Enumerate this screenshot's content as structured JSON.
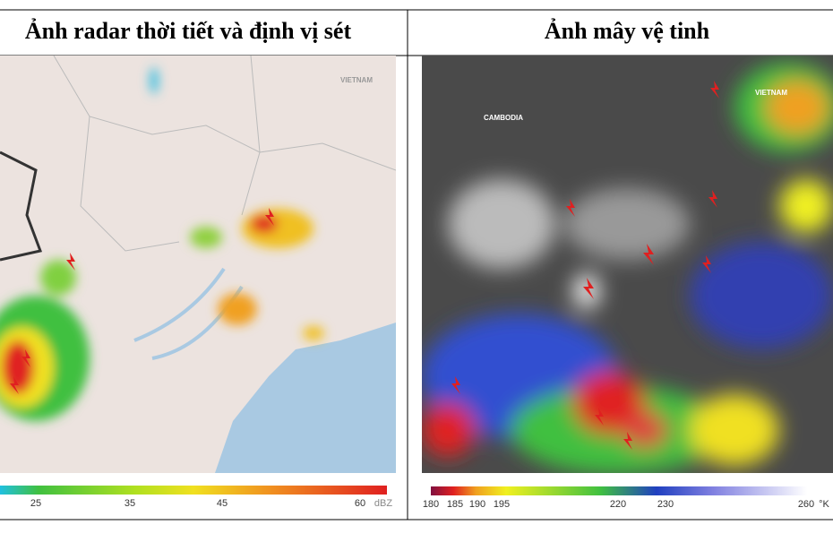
{
  "panels": [
    {
      "title": "Ảnh radar thời tiết và định vị sét",
      "labels": [
        "VIETNAM"
      ],
      "colorbar": {
        "ticks": [
          "25",
          "35",
          "45",
          "60"
        ],
        "unit": "dBZ"
      }
    },
    {
      "title": "Ảnh mây vệ tinh",
      "labels": [
        "VIETNAM",
        "CAMBODIA"
      ],
      "colorbar": {
        "ticks": [
          "180",
          "185",
          "190",
          "195",
          "220",
          "230",
          "260"
        ],
        "unit": "°K"
      }
    }
  ]
}
